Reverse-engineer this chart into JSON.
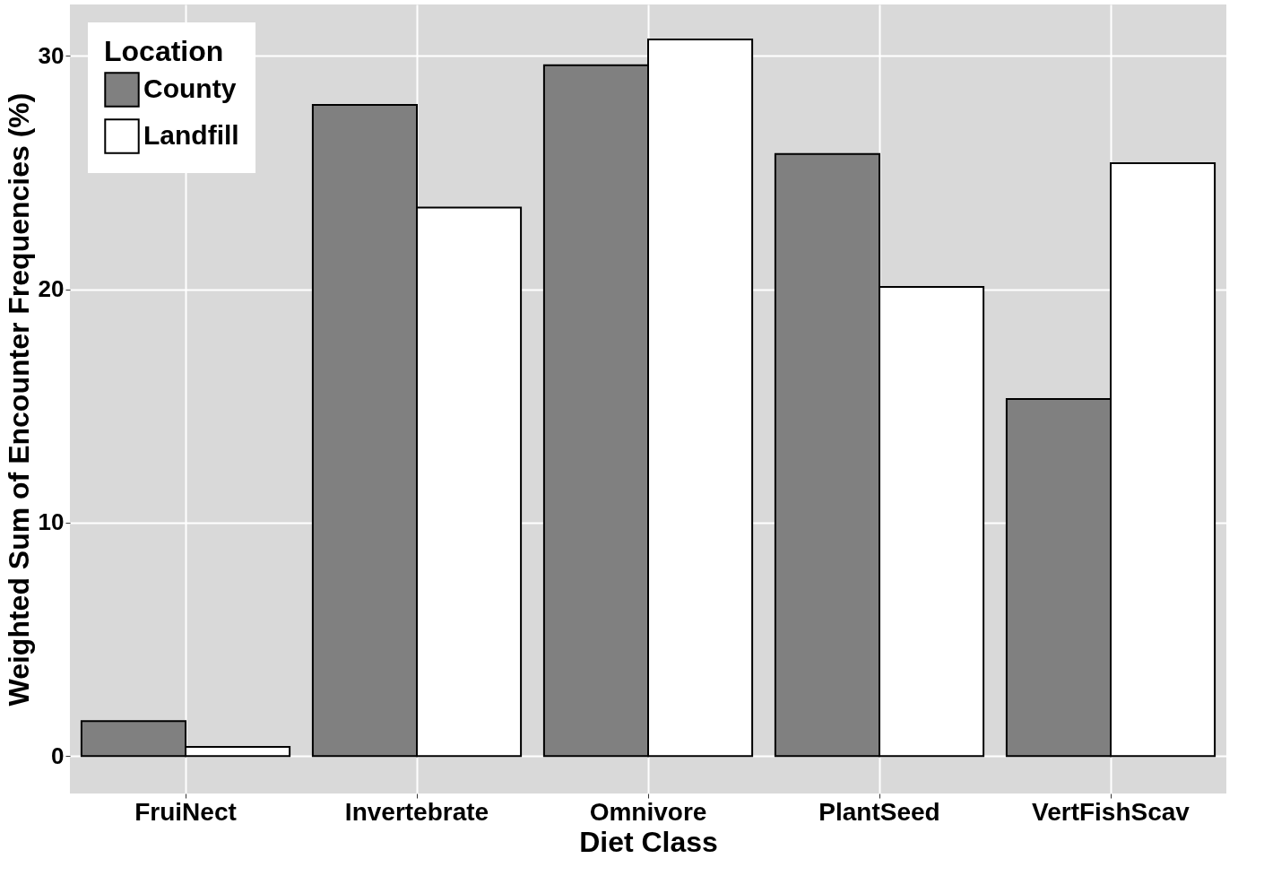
{
  "chart_data": {
    "type": "bar",
    "xlabel": "Diet Class",
    "ylabel": "Weighted Sum of Encounter Frequencies (%)",
    "legend_title": "Location",
    "categories": [
      "FruiNect",
      "Invertebrate",
      "Omnivore",
      "PlantSeed",
      "VertFishScav"
    ],
    "series": [
      {
        "name": "County",
        "color": "#808080",
        "values": [
          1.5,
          27.9,
          29.6,
          25.8,
          15.3
        ]
      },
      {
        "name": "Landfill",
        "color": "#ffffff",
        "values": [
          0.4,
          23.5,
          30.7,
          20.1,
          25.4
        ]
      }
    ],
    "ylim": [
      -1.6,
      32.2
    ],
    "yticks": [
      0,
      10,
      20,
      30
    ],
    "grid": true,
    "legend": "top left"
  }
}
